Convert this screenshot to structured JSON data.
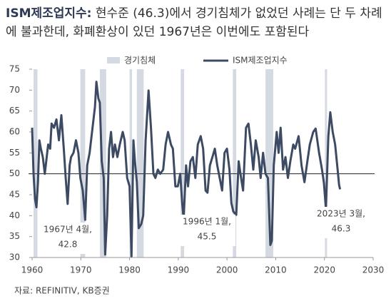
{
  "chart_data": {
    "type": "line",
    "title": "ISM제조업지수:",
    "subtitle": "현수준 (46.3)에서 경기침체가 없었던 사례는 단 두 차례에 불과한데, 화폐환상이 있던 1967년은 이번에도 포함된다",
    "source": "자료: REFINITIV, KB증권",
    "xlim": [
      1960,
      2030
    ],
    "xticks": [
      1960,
      1970,
      1980,
      1990,
      2000,
      2010,
      2020,
      2030
    ],
    "ylim": [
      30,
      75
    ],
    "yticks": [
      30,
      35,
      40,
      45,
      50,
      55,
      60,
      65,
      70,
      75
    ],
    "reference_line": 50,
    "recessions": {
      "name": "경기침체",
      "color": "#d5dae2",
      "periods": [
        [
          1960.3,
          1961.1
        ],
        [
          1969.9,
          1970.9
        ],
        [
          1973.9,
          1975.2
        ],
        [
          1980.0,
          1980.5
        ],
        [
          1981.5,
          1982.9
        ],
        [
          1990.5,
          1991.2
        ],
        [
          2001.2,
          2001.9
        ],
        [
          2007.9,
          2009.5
        ],
        [
          2020.1,
          2020.3
        ]
      ]
    },
    "x": [
      1960.0,
      1960.3,
      1960.6,
      1960.9,
      1961.2,
      1961.5,
      1961.8,
      1962.2,
      1962.6,
      1962.9,
      1963.3,
      1963.7,
      1964.0,
      1964.5,
      1965.0,
      1965.5,
      1966.0,
      1966.5,
      1966.9,
      1967.3,
      1967.7,
      1968.0,
      1968.5,
      1969.0,
      1969.5,
      1969.9,
      1970.4,
      1970.9,
      1971.3,
      1971.8,
      1972.3,
      1972.9,
      1973.2,
      1973.6,
      1973.9,
      1974.3,
      1974.7,
      1975.0,
      1975.4,
      1975.8,
      1976.2,
      1976.6,
      1977.0,
      1977.5,
      1978.0,
      1978.6,
      1979.0,
      1979.5,
      1980.0,
      1980.4,
      1980.8,
      1981.1,
      1981.5,
      1981.9,
      1982.4,
      1982.8,
      1983.3,
      1983.9,
      1984.4,
      1984.9,
      1985.3,
      1985.8,
      1986.3,
      1986.9,
      1987.4,
      1987.9,
      1988.5,
      1988.9,
      1989.4,
      1989.9,
      1990.4,
      1990.8,
      1991.1,
      1991.6,
      1992.0,
      1992.5,
      1993.0,
      1993.5,
      1994.0,
      1994.6,
      1995.1,
      1995.6,
      1996.0,
      1996.5,
      1997.0,
      1997.5,
      1998.0,
      1998.5,
      1999.0,
      1999.5,
      2000.0,
      2000.5,
      2000.9,
      2001.3,
      2001.9,
      2002.4,
      2002.9,
      2003.3,
      2003.9,
      2004.4,
      2004.9,
      2005.4,
      2005.9,
      2006.5,
      2006.9,
      2007.4,
      2007.9,
      2008.4,
      2008.9,
      2009.2,
      2009.6,
      2010.2,
      2010.6,
      2011.0,
      2011.5,
      2012.0,
      2012.5,
      2013.0,
      2013.6,
      2014.0,
      2014.7,
      2015.3,
      2015.9,
      2016.5,
      2017.0,
      2017.7,
      2018.2,
      2018.9,
      2019.5,
      2019.9,
      2020.3,
      2020.8,
      2021.2,
      2021.7,
      2022.2,
      2022.7,
      2023.0,
      2023.2
    ],
    "series": [
      {
        "name": "ISM제조업지수",
        "color": "#3d4a63",
        "values": [
          61,
          50,
          44,
          42,
          48,
          58,
          56,
          54,
          50,
          53,
          57,
          56,
          62,
          61,
          63,
          58,
          64,
          56,
          49,
          42.8,
          52,
          54,
          55,
          58,
          55,
          49,
          46,
          39,
          52,
          55,
          60,
          66,
          72,
          68,
          67,
          53,
          49,
          30.7,
          40,
          56,
          60,
          54,
          57,
          54,
          57,
          60,
          58,
          49,
          47,
          30.3,
          58,
          53,
          48,
          37,
          38,
          40,
          58,
          69.9,
          61,
          50,
          49,
          51,
          50,
          51,
          57,
          60,
          57,
          56,
          47,
          47,
          50,
          43,
          39.2,
          52,
          47,
          53,
          54,
          49,
          57,
          59,
          56,
          46,
          45.5,
          52,
          54,
          56,
          52,
          49,
          46,
          55,
          56,
          51,
          43,
          41,
          40.2,
          53,
          49,
          46,
          61,
          62,
          57,
          51,
          58,
          54,
          49,
          55,
          50,
          49,
          33,
          34,
          52,
          60,
          55,
          61,
          51,
          54,
          49,
          53,
          57,
          56,
          59,
          52,
          48,
          53,
          57,
          60,
          60.8,
          55,
          51,
          47.8,
          41.5,
          59,
          64.7,
          60,
          57,
          51,
          47.4,
          46.3
        ]
      }
    ],
    "annotations": [
      {
        "text": "1967년 4월,",
        "value": 42.8
      },
      {
        "text": "1996년 1월,",
        "value": 45.5
      },
      {
        "text": "2023년 3월,",
        "value": 46.3
      }
    ]
  }
}
